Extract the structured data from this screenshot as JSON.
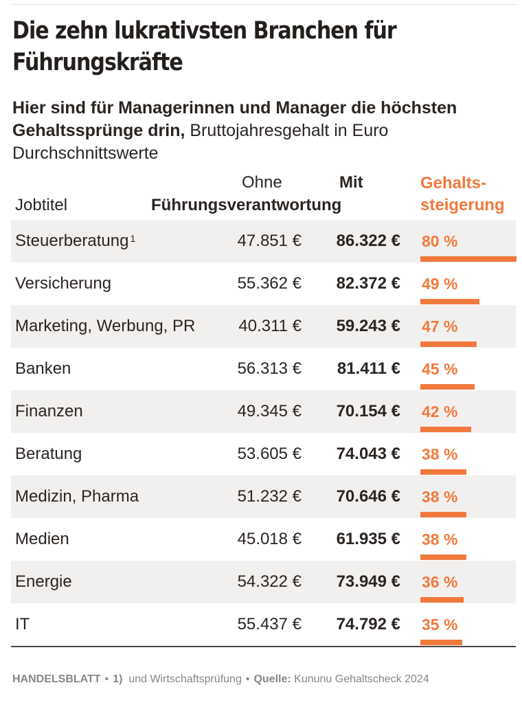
{
  "title": "Die zehn lukrativsten Branchen für Führungskräfte",
  "subtitle_bold": "Hier sind für Managerinnen und Manager die höchsten Gehaltssprünge drin,",
  "subtitle_rest": " Bruttojahresgehalt in Euro",
  "subtitle_line2": "Durchschnittswerte",
  "columns": {
    "job": "Jobtitel",
    "ohne": "Ohne",
    "mit": "Mit",
    "fuehrung": "Führungsverantwortung",
    "steigerung_1": "Gehalts-",
    "steigerung_2": "steigerung"
  },
  "colors": {
    "accent": "#f2793d",
    "shade": "#f2f0ee",
    "text": "#2a2522"
  },
  "chart_data": {
    "type": "table",
    "rows": [
      {
        "job": "Steuerberatung",
        "footnote": "1",
        "ohne": "47.851 €",
        "mit": "86.322 €",
        "pct_label": "80 %",
        "pct": 80
      },
      {
        "job": "Versicherung",
        "footnote": "",
        "ohne": "55.362 €",
        "mit": "82.372 €",
        "pct_label": "49 %",
        "pct": 49
      },
      {
        "job": "Marketing, Werbung, PR",
        "footnote": "",
        "ohne": "40.311 €",
        "mit": "59.243 €",
        "pct_label": "47 %",
        "pct": 47
      },
      {
        "job": "Banken",
        "footnote": "",
        "ohne": "56.313 €",
        "mit": "81.411 €",
        "pct_label": "45 %",
        "pct": 45
      },
      {
        "job": "Finanzen",
        "footnote": "",
        "ohne": "49.345 €",
        "mit": "70.154 €",
        "pct_label": "42 %",
        "pct": 42
      },
      {
        "job": "Beratung",
        "footnote": "",
        "ohne": "53.605 €",
        "mit": "74.043 €",
        "pct_label": "38 %",
        "pct": 38
      },
      {
        "job": "Medizin, Pharma",
        "footnote": "",
        "ohne": "51.232 €",
        "mit": "70.646 €",
        "pct_label": "38 %",
        "pct": 38
      },
      {
        "job": "Medien",
        "footnote": "",
        "ohne": "45.018 €",
        "mit": "61.935 €",
        "pct_label": "38 %",
        "pct": 38
      },
      {
        "job": "Energie",
        "footnote": "",
        "ohne": "54.322 €",
        "mit": "73.949 €",
        "pct_label": "36 %",
        "pct": 36
      },
      {
        "job": "IT",
        "footnote": "",
        "ohne": "55.437 €",
        "mit": "74.792 €",
        "pct_label": "35 %",
        "pct": 35
      }
    ]
  },
  "footer": {
    "brand": "HANDELSBLATT",
    "bullet": "•",
    "note_num": "1)",
    "note_text": "und Wirtschaftsprüfung",
    "source_label": "Quelle:",
    "source_text": "Kununu Gehaltscheck 2024"
  }
}
